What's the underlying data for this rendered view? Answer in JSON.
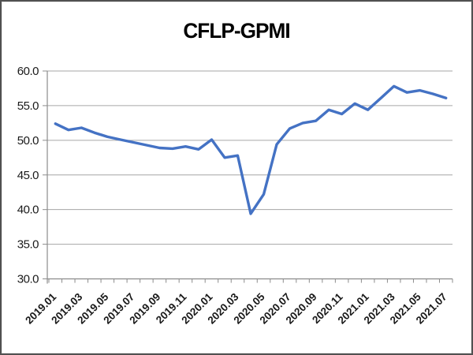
{
  "chart_data": {
    "type": "line",
    "title": "CFLP-GPMI",
    "x": [
      "2019.01",
      "2019.02",
      "2019.03",
      "2019.04",
      "2019.05",
      "2019.06",
      "2019.07",
      "2019.08",
      "2019.09",
      "2019.10",
      "2019.11",
      "2019.12",
      "2020.01",
      "2020.02",
      "2020.03",
      "2020.04",
      "2020.05",
      "2020.06",
      "2020.07",
      "2020.08",
      "2020.09",
      "2020.10",
      "2020.11",
      "2020.12",
      "2021.01",
      "2021.02",
      "2021.03",
      "2021.04",
      "2021.05",
      "2021.06",
      "2021.07"
    ],
    "series": [
      {
        "name": "CFLP-GPMI",
        "values": [
          52.4,
          51.5,
          51.8,
          51.1,
          50.5,
          50.1,
          49.7,
          49.3,
          48.9,
          48.8,
          49.1,
          48.7,
          50.1,
          47.5,
          47.8,
          39.4,
          42.2,
          49.4,
          51.7,
          52.5,
          52.8,
          54.4,
          53.8,
          55.3,
          54.4,
          56.1,
          57.8,
          56.9,
          57.2,
          56.7,
          56.1
        ]
      }
    ],
    "x_tick_labels": [
      "2019.01",
      "2019.03",
      "2019.05",
      "2019.07",
      "2019.09",
      "2019.11",
      "2020.01",
      "2020.03",
      "2020.05",
      "2020.07",
      "2020.09",
      "2020.11",
      "2021.01",
      "2021.03",
      "2021.05",
      "2021.07"
    ],
    "y_tick_labels": [
      "30.0",
      "35.0",
      "40.0",
      "45.0",
      "50.0",
      "55.0",
      "60.0"
    ],
    "ylim": [
      30,
      60
    ],
    "ytick_step": 5,
    "grid": "horizontal",
    "legend": "none",
    "line_color": "#4472C4",
    "grid_color": "#a6a6a6",
    "axis_color": "#8c8c8c",
    "label_color": "#1a1a1a",
    "title_color": "#000000"
  }
}
